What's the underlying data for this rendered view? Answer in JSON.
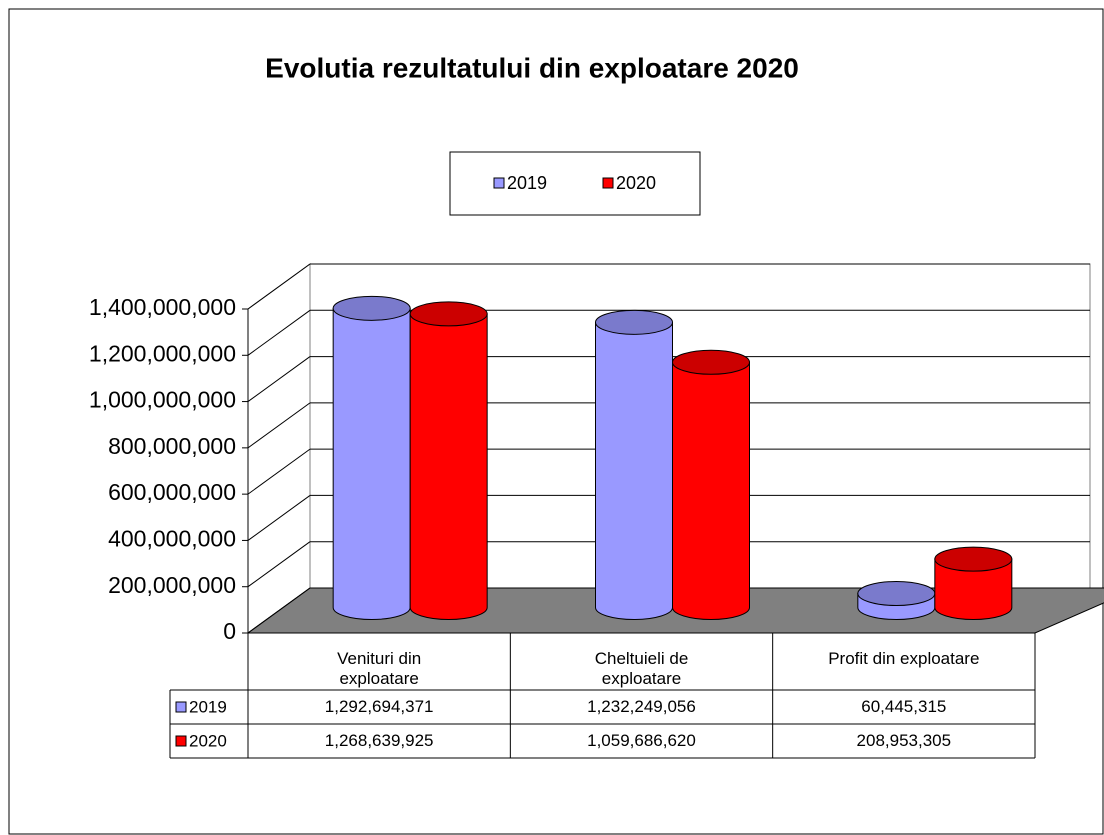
{
  "chart_data": {
    "type": "bar3d",
    "title": "Evolutia rezultatului din exploatare 2020",
    "categories": [
      "Venituri din exploatare",
      "Cheltuieli de exploatare",
      "Profit din exploatare"
    ],
    "series": [
      {
        "name": "2019",
        "color": "#9999ff",
        "values": [
          1292694371,
          1232249056,
          60445315
        ],
        "value_labels": [
          "1,292,694,371",
          "1,232,249,056",
          "60,445,315"
        ]
      },
      {
        "name": "2020",
        "color": "#ff0000",
        "values": [
          1268639925,
          1059686620,
          208953305
        ],
        "value_labels": [
          "1,268,639,925",
          "1,059,686,620",
          "208,953,305"
        ]
      }
    ],
    "ylim": [
      0,
      1400000000
    ],
    "yticks": [
      0,
      {
        "value": 200000000,
        "label": "200,000,000"
      },
      {
        "value": 400000000,
        "label": "400,000,000"
      },
      {
        "value": 600000000,
        "label": "600,000,000"
      },
      {
        "value": 800000000,
        "label": "800,000,000"
      },
      {
        "value": 1000000000,
        "label": "1,000,000,000"
      },
      {
        "value": 1200000000,
        "label": "1,200,000,000"
      },
      {
        "value": 1400000000,
        "label": "1,400,000,000"
      }
    ],
    "grid": true,
    "legend": "top",
    "data_table": true
  }
}
